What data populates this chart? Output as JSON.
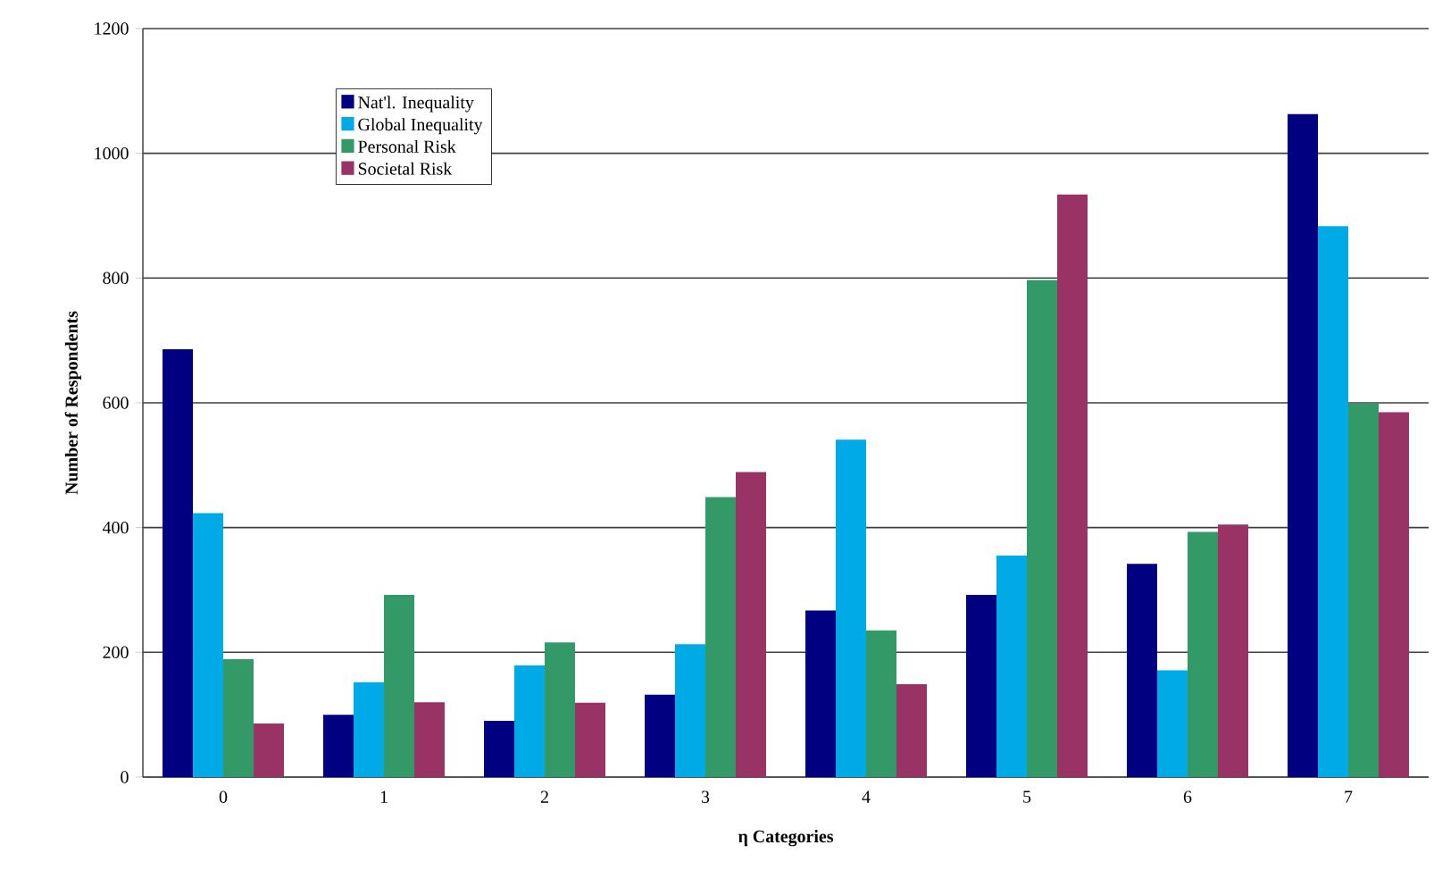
{
  "chart_data": {
    "type": "bar",
    "xlabel": "η Categories",
    "ylabel": "Number of Respondents",
    "categories": [
      "0",
      "1",
      "2",
      "3",
      "4",
      "5",
      "6",
      "7"
    ],
    "series": [
      {
        "name": "Nat'l. Inequality",
        "color": "#000080",
        "values": [
          686,
          100,
          90,
          132,
          267,
          292,
          342,
          1063
        ]
      },
      {
        "name": "Global Inequality",
        "color": "#00aae6",
        "values": [
          423,
          152,
          179,
          213,
          541,
          355,
          171,
          883
        ]
      },
      {
        "name": "Personal Risk",
        "color": "#339966",
        "values": [
          189,
          292,
          216,
          449,
          235,
          797,
          393,
          599
        ]
      },
      {
        "name": "Societal Risk",
        "color": "#993366",
        "values": [
          86,
          120,
          119,
          489,
          149,
          934,
          405,
          585
        ]
      }
    ],
    "ylim": [
      0,
      1200
    ],
    "yticks": [
      0,
      200,
      400,
      600,
      800,
      1000,
      1200
    ],
    "grid": "y",
    "legend": "top left"
  }
}
